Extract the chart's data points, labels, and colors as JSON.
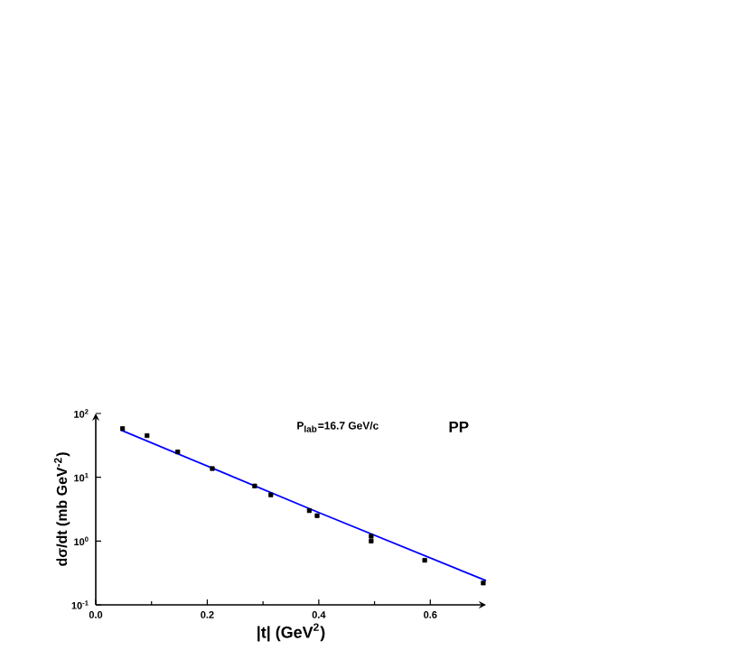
{
  "chart_data": {
    "type": "scatter",
    "xlabel": "|t| (GeV$^{2}$)",
    "ylabel": "dσ/dt (mb GeV$^{-2}$)",
    "annotations": [
      "P$_{lab}$=16.7 GeV/c",
      "PP"
    ],
    "log": "y",
    "xlim": [
      0,
      0.7
    ],
    "ylim": [
      0.1,
      100
    ],
    "xticks": [
      {
        "value": 0,
        "label": "0.0"
      },
      0.2,
      0.4,
      0.6
    ],
    "yticks": [
      {
        "value": 0.1,
        "label": "10$^{-1}$"
      },
      {
        "value": 1,
        "label": "10$^{0}$"
      },
      {
        "value": 10,
        "label": "10$^{1}$"
      },
      {
        "value": 100,
        "label": "10$^{2}$"
      }
    ],
    "series": [
      {
        "color": "#000000",
        "marker": "square",
        "x": [
          0.048,
          0.092,
          0.147,
          0.209,
          0.285,
          0.314,
          0.383,
          0.397,
          0.494,
          0.494,
          0.59,
          0.695
        ],
        "values": [
          58,
          45,
          25,
          13.7,
          7.3,
          5.3,
          3.0,
          2.5,
          1.19,
          1.0,
          0.5,
          0.22
        ]
      },
      {
        "type": "line",
        "color": "#0000ff",
        "line_style": "solid",
        "marker": "none",
        "x": [
          0.045,
          0.4,
          0.7
        ],
        "values": [
          55,
          2.8,
          0.24
        ]
      }
    ]
  }
}
